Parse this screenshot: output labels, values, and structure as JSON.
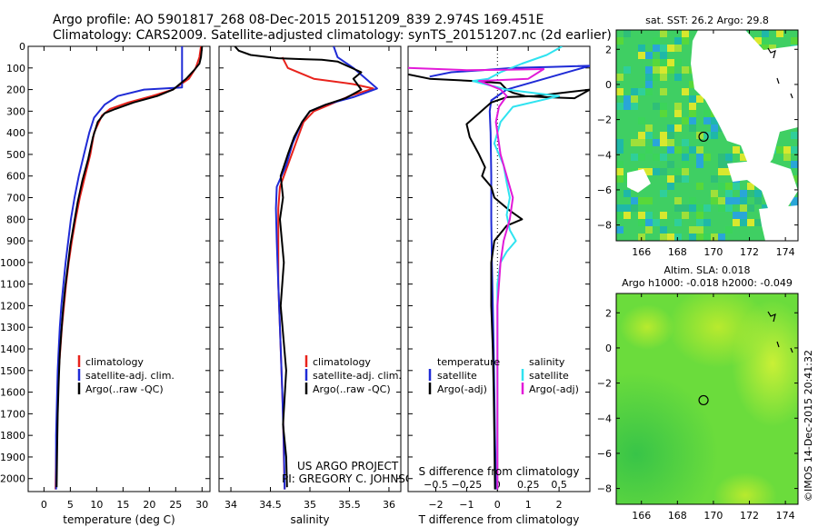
{
  "header": {
    "line1": "Argo profile: AO 5901817_268 08-Dec-2015 20151209_839 2.974S 169.451E",
    "line2": "Climatology: CARS2009. Satellite-adjusted climatology: synTS_20151207.nc (2d earlier)"
  },
  "project": {
    "line1": "US ARGO PROJECT",
    "line2": "PI: GREGORY C. JOHNSON"
  },
  "watermark": "©IMOS 14-Dec-2015 20:41:32",
  "colors": {
    "climatology": "#e8231c",
    "satellite": "#1f2bd6",
    "argo": "#000000",
    "sat_salinity": "#2fe3f0",
    "argo_salinity": "#e21ad8",
    "land": "#ffffff"
  },
  "chart_data": [
    {
      "id": "temperature",
      "type": "line",
      "xlabel": "temperature (deg C)",
      "ylabel": "",
      "xlim": [
        -3,
        31.5
      ],
      "ylim": [
        2060,
        0
      ],
      "xticks": [
        0,
        5,
        10,
        15,
        20,
        25,
        30
      ],
      "xtick_labels": [
        "0",
        "5",
        "10",
        "15",
        "20",
        "25",
        "30"
      ],
      "yticks": [
        0,
        100,
        200,
        300,
        400,
        500,
        600,
        700,
        800,
        900,
        1000,
        1100,
        1200,
        1300,
        1400,
        1500,
        1600,
        1700,
        1800,
        1900,
        2000
      ],
      "ytick_labels": [
        "0",
        "100",
        "200",
        "300",
        "400",
        "500",
        "600",
        "700",
        "800",
        "900",
        "1000",
        "1100",
        "1200",
        "1300",
        "1400",
        "1500",
        "1600",
        "1700",
        "1800",
        "1900",
        "2000"
      ],
      "legend": [
        "climatology",
        "satellite-adj. clim.",
        "Argo(..raw -QC)"
      ],
      "series": [
        {
          "name": "climatology",
          "color_key": "climatology",
          "x": [
            29.8,
            29.5,
            28.8,
            27.5,
            24.5,
            20.5,
            16,
            12.5,
            11,
            9.5,
            8.8,
            7.8,
            6.8,
            6,
            5.3,
            4.7,
            4.2,
            3.8,
            3.4,
            3.1,
            2.8,
            2.6,
            2.5,
            2.4,
            2.3,
            2.2
          ],
          "y": [
            0,
            50,
            100,
            150,
            200,
            230,
            260,
            290,
            320,
            400,
            500,
            600,
            700,
            800,
            900,
            1000,
            1100,
            1200,
            1300,
            1400,
            1500,
            1600,
            1700,
            1800,
            1900,
            2050
          ]
        },
        {
          "name": "satellite-adj. clim.",
          "color_key": "satellite",
          "x": [
            26.2,
            26.2,
            26.2,
            26.2,
            19,
            14,
            11.5,
            10.5,
            9.5,
            8.6,
            7.6,
            6.6,
            5.8,
            5.1,
            4.6,
            4.1,
            3.7,
            3.3,
            3.0,
            2.8,
            2.6,
            2.5,
            2.4,
            2.3,
            2.3
          ],
          "y": [
            0,
            50,
            120,
            190,
            200,
            230,
            270,
            300,
            330,
            400,
            500,
            600,
            700,
            800,
            900,
            1000,
            1100,
            1200,
            1300,
            1400,
            1500,
            1600,
            1700,
            1800,
            2050
          ]
        },
        {
          "name": "Argo(..raw -QC)",
          "color_key": "argo",
          "x": [
            30,
            29.8,
            29.5,
            28.5,
            27,
            24.5,
            21.5,
            17,
            13.5,
            11.5,
            10.2,
            9.3,
            8.4,
            7.3,
            6.4,
            5.7,
            5.0,
            4.5,
            4.0,
            3.6,
            3.3,
            3.0,
            2.8,
            2.6,
            2.5,
            2.4
          ],
          "y": [
            0,
            50,
            80,
            110,
            150,
            200,
            230,
            260,
            290,
            310,
            350,
            420,
            520,
            620,
            720,
            820,
            920,
            1020,
            1120,
            1220,
            1320,
            1420,
            1550,
            1700,
            1850,
            2040
          ]
        }
      ]
    },
    {
      "id": "salinity",
      "type": "line",
      "xlabel": "salinity",
      "ylabel": "",
      "xlim": [
        33.85,
        36.15
      ],
      "ylim": [
        2060,
        0
      ],
      "xticks": [
        34,
        34.5,
        35,
        35.5,
        36
      ],
      "xtick_labels": [
        "34",
        "34.5",
        "35",
        "35.5",
        "36"
      ],
      "legend": [
        "climatology",
        "satellite-adj. clim.",
        "Argo(..raw -QC)"
      ],
      "series": [
        {
          "name": "climatology",
          "color_key": "climatology",
          "x": [
            34.65,
            34.72,
            35.05,
            35.55,
            35.8,
            35.5,
            35.25,
            35.05,
            34.92,
            34.82,
            34.72,
            34.62,
            34.6,
            34.6,
            34.6,
            34.62,
            34.64,
            34.66,
            34.67,
            34.68
          ],
          "y": [
            50,
            100,
            150,
            175,
            195,
            230,
            270,
            300,
            350,
            450,
            550,
            650,
            750,
            900,
            1100,
            1300,
            1500,
            1700,
            1900,
            2050
          ]
        },
        {
          "name": "satellite-adj. clim.",
          "color_key": "satellite",
          "x": [
            35.3,
            35.35,
            35.55,
            35.85,
            35.55,
            35.2,
            35,
            34.9,
            34.78,
            34.7,
            34.58,
            34.57,
            34.58,
            34.6,
            34.62,
            34.65,
            34.67,
            34.68
          ],
          "y": [
            0,
            50,
            100,
            195,
            235,
            270,
            300,
            350,
            450,
            550,
            650,
            750,
            900,
            1100,
            1300,
            1600,
            1850,
            2050
          ]
        },
        {
          "name": "Argo(..raw -QC)",
          "color_key": "argo",
          "x": [
            34.05,
            34.1,
            34.25,
            34.6,
            34.95,
            35.15,
            35.35,
            35.65,
            35.55,
            35.65,
            35.45,
            35.2,
            35.0,
            34.9,
            34.8,
            34.72,
            34.63,
            34.66,
            34.62,
            34.67,
            34.63,
            34.7,
            34.66,
            34.7,
            34.71
          ],
          "y": [
            0,
            20,
            40,
            55,
            60,
            62,
            70,
            120,
            150,
            200,
            240,
            270,
            300,
            350,
            420,
            500,
            600,
            700,
            800,
            1000,
            1200,
            1500,
            1750,
            1900,
            2040
          ]
        }
      ]
    },
    {
      "id": "differences",
      "type": "line",
      "xlabel": "T difference from climatology",
      "xlabel2": "S difference from climatology",
      "xlim": [
        -2.9,
        3.0
      ],
      "ylim": [
        2060,
        0
      ],
      "xticks": [
        -2,
        -1,
        0,
        1,
        2
      ],
      "xtick_labels": [
        "−2",
        "−1",
        "0",
        "1",
        "2"
      ],
      "xticks_top_values": [
        -0.5,
        -0.25,
        0,
        0.25,
        0.5
      ],
      "xticks_top": [
        "−0.5",
        "−0.25",
        "0",
        "0.25",
        "0.5"
      ],
      "legend_headers": [
        "temperature",
        "salinity"
      ],
      "legend": [
        "satellite",
        "Argo(-adj)",
        "satellite",
        "Argo(-adj)"
      ],
      "series": [
        {
          "name": "temperature satellite",
          "color_key": "satellite",
          "x": [
            -2.2,
            -1.5,
            -0.5,
            0.5,
            1.8,
            3.0,
            0.3,
            -0.2,
            -0.25,
            -0.22,
            -0.2,
            -0.2,
            -0.18,
            -0.15,
            -0.12,
            -0.1,
            -0.08,
            -0.06,
            -0.05
          ],
          "y": [
            140,
            120,
            110,
            100,
            95,
            90,
            200,
            250,
            300,
            400,
            600,
            800,
            1000,
            1200,
            1400,
            1600,
            1800,
            1950,
            2050
          ]
        },
        {
          "name": "temperature Argo(-adj)",
          "color_key": "argo",
          "x": [
            -2.9,
            -2.2,
            -0.8,
            0.1,
            0.3,
            0.5,
            0.9,
            1.5,
            2.5,
            3.0,
            1.2,
            0.3,
            -0.2,
            -1.0,
            -0.9,
            -0.6,
            -0.4,
            -0.5,
            -0.2,
            -0.1,
            0.4,
            0.8,
            0.3,
            -0.1,
            -0.2,
            -0.2,
            -0.15,
            -0.12,
            -0.1,
            -0.08
          ],
          "y": [
            130,
            150,
            160,
            170,
            200,
            215,
            230,
            235,
            240,
            200,
            230,
            235,
            260,
            360,
            420,
            500,
            560,
            600,
            650,
            700,
            760,
            800,
            830,
            900,
            1000,
            1200,
            1400,
            1600,
            1800,
            2050
          ]
        },
        {
          "name": "salinity satellite",
          "color_key": "sat_salinity",
          "x": [
            2.1,
            1.6,
            0.8,
            0.1,
            -0.3,
            -0.8,
            0.3,
            2.0,
            0.5,
            0.1,
            -0.1,
            0.2,
            0.3,
            0.4,
            0.3,
            0.4,
            0.6,
            0.3,
            0.1,
            0.0,
            0.0,
            0.0,
            0.0
          ],
          "y": [
            0,
            40,
            80,
            120,
            150,
            160,
            200,
            230,
            280,
            350,
            450,
            550,
            630,
            700,
            780,
            850,
            900,
            950,
            1000,
            1100,
            1300,
            1600,
            2050
          ]
        },
        {
          "name": "salinity Argo(-adj)",
          "color_key": "argo_salinity",
          "x": [
            -2.9,
            -1.0,
            0.3,
            1.5,
            1.0,
            -0.6,
            -0.5,
            0.1,
            0.3,
            0.05,
            -0.05,
            0.1,
            0.3,
            0.5,
            0.4,
            0.2,
            0.1,
            0.0,
            0.0
          ],
          "y": [
            100,
            110,
            108,
            105,
            150,
            160,
            165,
            200,
            230,
            280,
            350,
            500,
            600,
            700,
            800,
            900,
            1000,
            1200,
            2050
          ]
        }
      ]
    },
    {
      "id": "sst_map",
      "type": "heatmap",
      "title": "sat. SST: 26.2 Argo: 29.8",
      "xlim": [
        164.6,
        174.7
      ],
      "ylim": [
        -8.9,
        3.1
      ],
      "xticks": [
        166,
        168,
        170,
        172,
        174
      ],
      "xtick_labels": [
        "166",
        "168",
        "170",
        "172",
        "174"
      ],
      "yticks": [
        2,
        0,
        -2,
        -4,
        -6,
        -8
      ],
      "ytick_labels": [
        "2",
        "0",
        "−2",
        "−4",
        "−6",
        "−8"
      ],
      "argo_position": [
        169.451,
        -2.974
      ]
    },
    {
      "id": "sla_map",
      "type": "heatmap",
      "title1": "Altim. SLA: 0.018",
      "title2": "Argo h1000: -0.018 h2000: -0.049",
      "xlim": [
        164.6,
        174.7
      ],
      "ylim": [
        -8.9,
        3.1
      ],
      "xticks": [
        166,
        168,
        170,
        172,
        174
      ],
      "xtick_labels": [
        "166",
        "168",
        "170",
        "172",
        "174"
      ],
      "yticks": [
        2,
        0,
        -2,
        -4,
        -6,
        -8
      ],
      "ytick_labels": [
        "2",
        "0",
        "−2",
        "−4",
        "−6",
        "−8"
      ],
      "argo_position": [
        169.451,
        -2.974
      ]
    }
  ]
}
